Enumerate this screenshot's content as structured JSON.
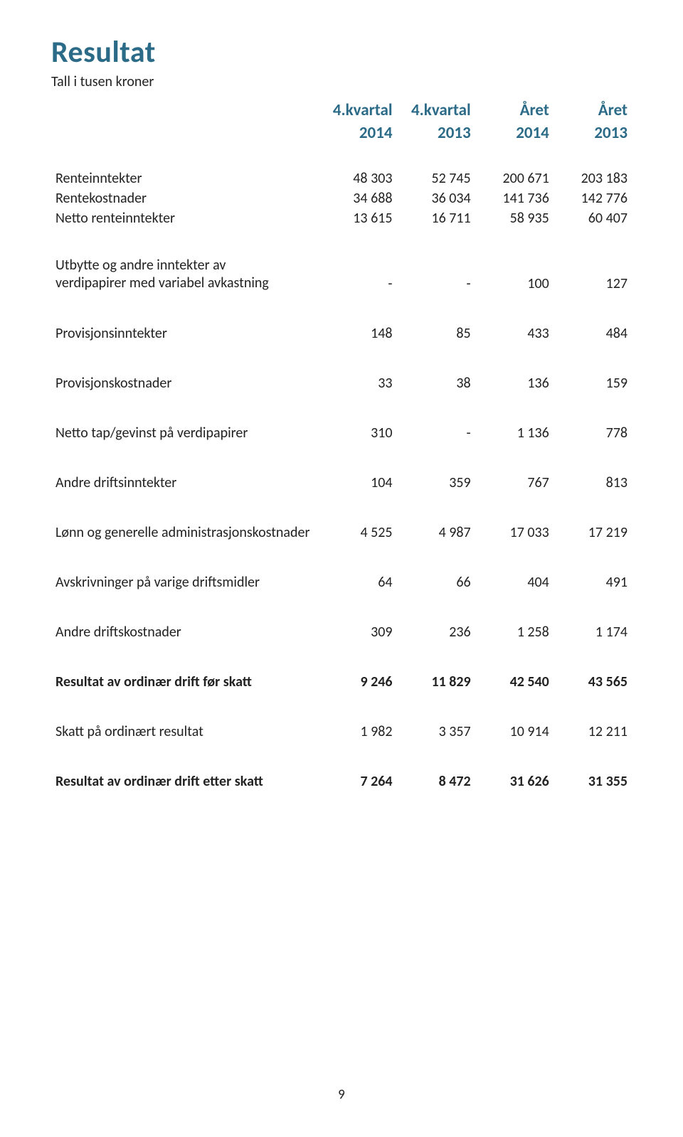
{
  "title": "Resultat",
  "subtitle": "Tall i tusen kroner",
  "colors": {
    "heading": "#2b6b87",
    "text": "#222222",
    "background": "#ffffff"
  },
  "typography": {
    "title_fontsize_pt": 32,
    "heading_fontsize_pt": 17,
    "body_fontsize_pt": 15
  },
  "table": {
    "header_top": [
      "",
      "4.kvartal",
      "4.kvartal",
      "Året",
      "Året"
    ],
    "header_bot": [
      "",
      "2014",
      "2013",
      "2014",
      "2013"
    ],
    "col_widths_pct": [
      46,
      13.5,
      13.5,
      13.5,
      13.5
    ],
    "rows": [
      {
        "type": "gap"
      },
      {
        "label": "Renteinntekter",
        "c": [
          "48 303",
          "52 745",
          "200 671",
          "203 183"
        ],
        "tight": true
      },
      {
        "label": "Rentekostnader",
        "c": [
          "34 688",
          "36 034",
          "141 736",
          "142 776"
        ],
        "tight": true
      },
      {
        "label": "Netto renteinntekter",
        "c": [
          "13 615",
          "16 711",
          "58 935",
          "60 407"
        ],
        "tight": true
      },
      {
        "type": "gap"
      },
      {
        "label": "Utbytte og andre inntekter av\nverdipapirer med variabel avkastning",
        "c": [
          "-",
          "-",
          "100",
          "127"
        ],
        "wrap": true
      },
      {
        "type": "gap"
      },
      {
        "label": "Provisjonsinntekter",
        "c": [
          "148",
          "85",
          "433",
          "484"
        ]
      },
      {
        "type": "gap"
      },
      {
        "label": "Provisjonskostnader",
        "c": [
          "33",
          "38",
          "136",
          "159"
        ]
      },
      {
        "type": "gap"
      },
      {
        "label": "Netto tap/gevinst på verdipapirer",
        "c": [
          "310",
          "-",
          "1 136",
          "778"
        ]
      },
      {
        "type": "gap"
      },
      {
        "label": "Andre driftsinntekter",
        "c": [
          "104",
          "359",
          "767",
          "813"
        ]
      },
      {
        "type": "gap"
      },
      {
        "label": "Lønn og generelle administrasjonskostnader",
        "c": [
          "4 525",
          "4 987",
          "17 033",
          "17 219"
        ]
      },
      {
        "type": "gap"
      },
      {
        "label": "Avskrivninger på varige driftsmidler",
        "c": [
          "64",
          "66",
          "404",
          "491"
        ]
      },
      {
        "type": "gap"
      },
      {
        "label": "Andre driftskostnader",
        "c": [
          "309",
          "236",
          "1 258",
          "1 174"
        ]
      },
      {
        "type": "gap"
      },
      {
        "label": "Resultat av ordinær drift før skatt",
        "c": [
          "9 246",
          "11 829",
          "42 540",
          "43 565"
        ],
        "bold": true
      },
      {
        "type": "gap"
      },
      {
        "label": "Skatt på ordinært resultat",
        "c": [
          "1 982",
          "3 357",
          "10 914",
          "12 211"
        ]
      },
      {
        "type": "gap"
      },
      {
        "label": "Resultat av ordinær drift etter skatt",
        "c": [
          "7 264",
          "8 472",
          "31 626",
          "31 355"
        ],
        "bold": true
      }
    ]
  },
  "page_number": "9"
}
